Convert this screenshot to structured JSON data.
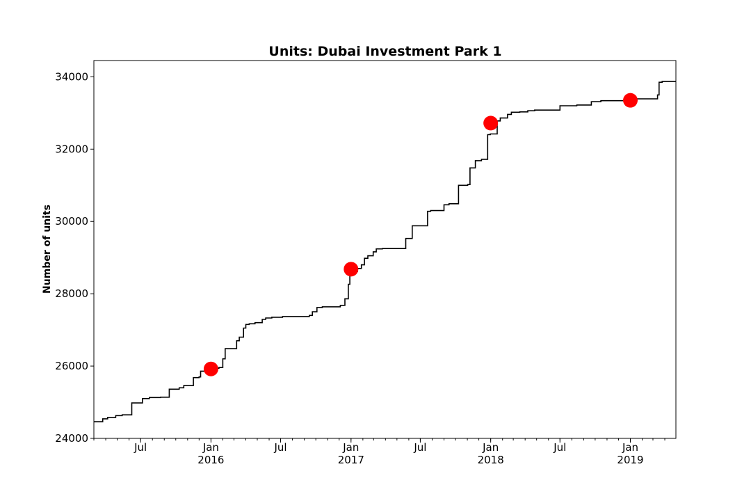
{
  "chart_data": {
    "type": "line",
    "title": "Units: Dubai Investment Park 1",
    "xlabel": "",
    "ylabel": "Number of units",
    "x_axis": {
      "type": "date",
      "range": [
        "2015-03-01",
        "2019-04-30"
      ],
      "major_ticks": [
        {
          "date": "2015-07-01",
          "label": "Jul",
          "sublabel": ""
        },
        {
          "date": "2016-01-01",
          "label": "Jan",
          "sublabel": "2016"
        },
        {
          "date": "2016-07-01",
          "label": "Jul",
          "sublabel": ""
        },
        {
          "date": "2017-01-01",
          "label": "Jan",
          "sublabel": "2017"
        },
        {
          "date": "2017-07-01",
          "label": "Jul",
          "sublabel": ""
        },
        {
          "date": "2018-01-01",
          "label": "Jan",
          "sublabel": "2018"
        },
        {
          "date": "2018-07-01",
          "label": "Jul",
          "sublabel": ""
        },
        {
          "date": "2019-01-01",
          "label": "Jan",
          "sublabel": "2019"
        }
      ]
    },
    "ylim": [
      24000,
      34450
    ],
    "yticks": [
      24000,
      26000,
      28000,
      30000,
      32000,
      34000
    ],
    "grid": false,
    "series": [
      {
        "color": "#000000",
        "drawstyle": "steps-post",
        "points": [
          [
            "2015-03-01",
            24460
          ],
          [
            "2015-03-24",
            24540
          ],
          [
            "2015-04-06",
            24580
          ],
          [
            "2015-04-27",
            24630
          ],
          [
            "2015-05-14",
            24650
          ],
          [
            "2015-06-08",
            24980
          ],
          [
            "2015-07-06",
            25100
          ],
          [
            "2015-07-24",
            25130
          ],
          [
            "2015-08-22",
            25140
          ],
          [
            "2015-09-14",
            25360
          ],
          [
            "2015-10-10",
            25400
          ],
          [
            "2015-10-22",
            25460
          ],
          [
            "2015-11-16",
            25680
          ],
          [
            "2015-12-01",
            25700
          ],
          [
            "2015-12-05",
            25860
          ],
          [
            "2015-12-20",
            25920
          ],
          [
            "2016-01-03",
            25940
          ],
          [
            "2016-01-22",
            25960
          ],
          [
            "2016-02-01",
            26200
          ],
          [
            "2016-02-07",
            26480
          ],
          [
            "2016-03-04",
            26480
          ],
          [
            "2016-03-08",
            26700
          ],
          [
            "2016-03-15",
            26800
          ],
          [
            "2016-03-26",
            27050
          ],
          [
            "2016-04-01",
            27150
          ],
          [
            "2016-04-10",
            27170
          ],
          [
            "2016-04-25",
            27200
          ],
          [
            "2016-05-14",
            27290
          ],
          [
            "2016-05-23",
            27330
          ],
          [
            "2016-06-08",
            27350
          ],
          [
            "2016-07-06",
            27370
          ],
          [
            "2016-09-14",
            27400
          ],
          [
            "2016-09-22",
            27500
          ],
          [
            "2016-10-04",
            27620
          ],
          [
            "2016-10-18",
            27640
          ],
          [
            "2016-12-04",
            27680
          ],
          [
            "2016-12-16",
            27860
          ],
          [
            "2016-12-25",
            28260
          ],
          [
            "2016-12-29",
            28520
          ],
          [
            "2017-01-08",
            28620
          ],
          [
            "2017-01-18",
            28700
          ],
          [
            "2017-01-28",
            28800
          ],
          [
            "2017-02-05",
            28980
          ],
          [
            "2017-02-14",
            29050
          ],
          [
            "2017-02-28",
            29160
          ],
          [
            "2017-03-08",
            29240
          ],
          [
            "2017-03-24",
            29250
          ],
          [
            "2017-05-24",
            29530
          ],
          [
            "2017-06-10",
            29880
          ],
          [
            "2017-07-20",
            30280
          ],
          [
            "2017-07-28",
            30300
          ],
          [
            "2017-09-01",
            30460
          ],
          [
            "2017-09-14",
            30490
          ],
          [
            "2017-10-09",
            31000
          ],
          [
            "2017-11-02",
            31020
          ],
          [
            "2017-11-08",
            31480
          ],
          [
            "2017-11-22",
            31680
          ],
          [
            "2017-12-08",
            31720
          ],
          [
            "2017-12-24",
            32400
          ],
          [
            "2017-12-31",
            32420
          ],
          [
            "2018-01-18",
            32780
          ],
          [
            "2018-01-26",
            32860
          ],
          [
            "2018-02-14",
            32960
          ],
          [
            "2018-02-24",
            33020
          ],
          [
            "2018-03-18",
            33030
          ],
          [
            "2018-04-08",
            33060
          ],
          [
            "2018-04-26",
            33080
          ],
          [
            "2018-07-01",
            33200
          ],
          [
            "2018-07-15",
            33200
          ],
          [
            "2018-08-14",
            33220
          ],
          [
            "2018-09-21",
            33310
          ],
          [
            "2018-10-16",
            33340
          ],
          [
            "2018-12-28",
            33360
          ],
          [
            "2019-01-17",
            33390
          ],
          [
            "2019-03-13",
            33500
          ],
          [
            "2019-03-17",
            33850
          ],
          [
            "2019-03-25",
            33870
          ],
          [
            "2019-04-30",
            33870
          ]
        ]
      },
      {
        "color": "#ff0000",
        "type": "scatter",
        "points": [
          [
            "2016-01-01",
            25920
          ],
          [
            "2017-01-01",
            28680
          ],
          [
            "2018-01-01",
            32720
          ],
          [
            "2019-01-01",
            33350
          ]
        ]
      }
    ]
  }
}
